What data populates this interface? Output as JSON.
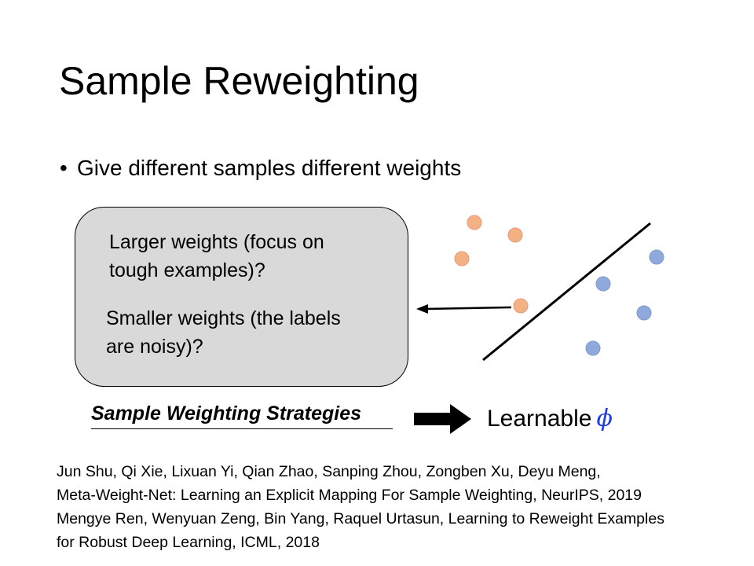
{
  "slide": {
    "title": "Sample Reweighting",
    "bullet": "Give different samples different weights",
    "box": {
      "line1a": "Larger weights (focus on",
      "line1b": "tough examples)?",
      "line2a": "Smaller weights (the labels",
      "line2b": "are noisy)?"
    },
    "strategies_label": "Sample Weighting Strategies",
    "learnable_label": "Learnable",
    "phi_symbol": "ϕ",
    "references": [
      "Jun Shu, Qi Xie, Lixuan Yi, Qian Zhao, Sanping Zhou, Zongben Xu, Deyu Meng,",
      "Meta-Weight-Net: Learning an Explicit Mapping For Sample Weighting, NeurIPS, 2019",
      "Mengye Ren, Wenyuan Zeng, Bin Yang, Raquel Urtasun, Learning to Reweight Examples",
      "for Robust Deep Learning, ICML, 2018"
    ],
    "colors": {
      "orange_point": "#f4b183",
      "orange_stroke": "#e9997a",
      "blue_point": "#8fa9dc",
      "blue_stroke": "#7f98cf",
      "phi": "#1f3fdc",
      "box_fill": "#d9d9d9"
    }
  }
}
